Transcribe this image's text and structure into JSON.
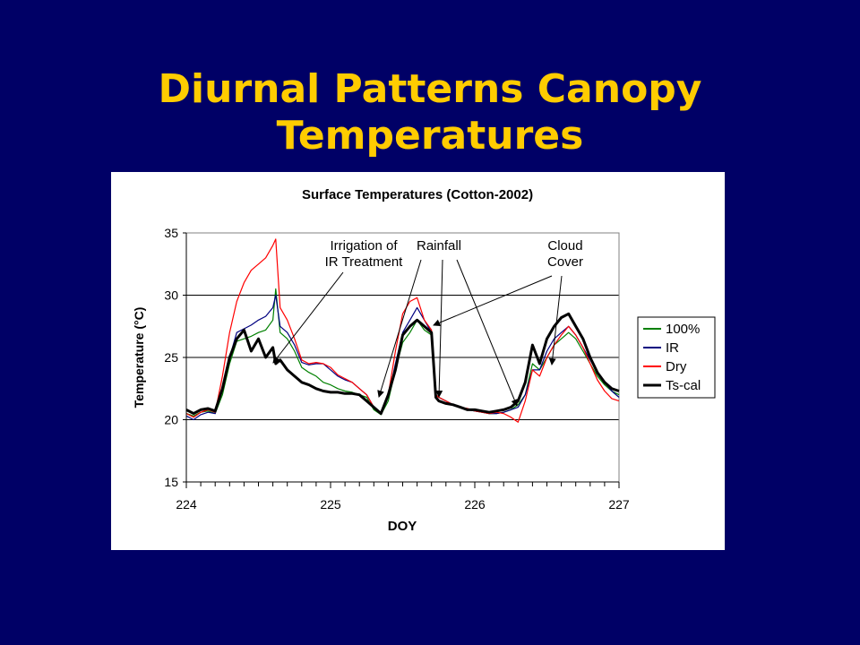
{
  "slide": {
    "title_line1": "Diurnal Patterns Canopy",
    "title_line2": "Temperatures"
  },
  "colors": {
    "background": "#000066",
    "title": "#FFCC00",
    "panel": "#FFFFFF"
  },
  "chart_data": {
    "type": "line",
    "title": "Surface Temperatures (Cotton-2002)",
    "xlabel": "DOY",
    "ylabel": "Temperature (°C)",
    "xlim": [
      224,
      227
    ],
    "ylim": [
      15,
      35
    ],
    "x_ticks": [
      "224",
      "225",
      "226",
      "227"
    ],
    "y_ticks": [
      "15",
      "20",
      "25",
      "30",
      "35"
    ],
    "grid": "horizontal",
    "legend_position": "right",
    "series": [
      {
        "name": "100%",
        "color": "#008000",
        "x": [
          224.0,
          224.05,
          224.1,
          224.15,
          224.2,
          224.25,
          224.3,
          224.35,
          224.4,
          224.45,
          224.5,
          224.55,
          224.6,
          224.62,
          224.65,
          224.7,
          224.75,
          224.8,
          224.85,
          224.9,
          224.95,
          225.0,
          225.05,
          225.1,
          225.15,
          225.2,
          225.25,
          225.3,
          225.35,
          225.4,
          225.45,
          225.5,
          225.55,
          225.6,
          225.65,
          225.7,
          225.73,
          225.75,
          225.8,
          225.85,
          225.9,
          225.95,
          226.0,
          226.05,
          226.1,
          226.15,
          226.2,
          226.25,
          226.3,
          226.35,
          226.4,
          226.45,
          226.5,
          226.55,
          226.6,
          226.65,
          226.7,
          226.75,
          226.8,
          226.85,
          226.9,
          226.95,
          227.0
        ],
        "y": [
          20.5,
          20.3,
          20.6,
          20.7,
          20.5,
          22.0,
          24.5,
          26.3,
          26.5,
          26.7,
          27.0,
          27.2,
          28.0,
          30.5,
          27.0,
          26.5,
          25.5,
          24.2,
          23.8,
          23.5,
          23.0,
          22.8,
          22.5,
          22.3,
          22.2,
          22.0,
          21.8,
          20.8,
          20.4,
          21.5,
          24.0,
          26.2,
          27.0,
          28.0,
          27.2,
          26.8,
          22.0,
          21.8,
          21.5,
          21.2,
          21.0,
          20.8,
          20.7,
          20.6,
          20.5,
          20.5,
          20.6,
          20.8,
          21.2,
          22.0,
          24.5,
          24.0,
          25.0,
          26.0,
          26.5,
          27.0,
          26.5,
          25.5,
          24.5,
          23.5,
          22.8,
          22.3,
          22.0
        ]
      },
      {
        "name": "IR",
        "color": "#000080",
        "x": [
          224.0,
          224.05,
          224.1,
          224.15,
          224.2,
          224.25,
          224.3,
          224.35,
          224.4,
          224.45,
          224.5,
          224.55,
          224.6,
          224.62,
          224.65,
          224.7,
          224.75,
          224.8,
          224.85,
          224.9,
          224.95,
          225.0,
          225.05,
          225.1,
          225.15,
          225.2,
          225.25,
          225.3,
          225.35,
          225.4,
          225.45,
          225.5,
          225.55,
          225.6,
          225.65,
          225.7,
          225.73,
          225.75,
          225.8,
          225.85,
          225.9,
          225.95,
          226.0,
          226.05,
          226.1,
          226.15,
          226.2,
          226.25,
          226.3,
          226.35,
          226.4,
          226.45,
          226.5,
          226.55,
          226.6,
          226.65,
          226.7,
          226.75,
          226.8,
          226.85,
          226.9,
          226.95,
          227.0
        ],
        "y": [
          20.3,
          20.0,
          20.4,
          20.6,
          20.5,
          22.5,
          25.0,
          27.0,
          27.3,
          27.6,
          28.0,
          28.3,
          29.0,
          30.0,
          27.5,
          27.0,
          26.0,
          24.6,
          24.4,
          24.5,
          24.5,
          24.0,
          23.5,
          23.2,
          23.0,
          22.5,
          22.0,
          21.0,
          20.5,
          21.8,
          24.5,
          27.0,
          28.0,
          29.0,
          28.0,
          27.0,
          22.0,
          21.8,
          21.5,
          21.2,
          21.0,
          20.8,
          20.7,
          20.6,
          20.5,
          20.5,
          20.6,
          20.8,
          21.0,
          22.0,
          24.0,
          24.0,
          25.5,
          26.5,
          27.0,
          27.5,
          26.8,
          25.8,
          24.8,
          23.8,
          23.0,
          22.3,
          21.8
        ]
      },
      {
        "name": "Dry",
        "color": "#FF0000",
        "x": [
          224.0,
          224.05,
          224.1,
          224.15,
          224.2,
          224.25,
          224.3,
          224.35,
          224.4,
          224.45,
          224.5,
          224.55,
          224.6,
          224.62,
          224.65,
          224.7,
          224.75,
          224.8,
          224.85,
          224.9,
          224.95,
          225.0,
          225.05,
          225.1,
          225.15,
          225.2,
          225.25,
          225.3,
          225.35,
          225.4,
          225.45,
          225.5,
          225.55,
          225.6,
          225.65,
          225.7,
          225.73,
          225.75,
          225.8,
          225.85,
          225.9,
          225.95,
          226.0,
          226.05,
          226.1,
          226.15,
          226.2,
          226.25,
          226.3,
          226.35,
          226.4,
          226.45,
          226.5,
          226.55,
          226.6,
          226.65,
          226.7,
          226.75,
          226.8,
          226.85,
          226.9,
          226.95,
          227.0
        ],
        "y": [
          20.5,
          20.2,
          20.6,
          20.8,
          20.6,
          23.5,
          27.0,
          29.5,
          31.0,
          32.0,
          32.5,
          33.0,
          34.0,
          34.5,
          29.0,
          28.0,
          26.5,
          24.8,
          24.5,
          24.6,
          24.5,
          24.2,
          23.6,
          23.3,
          23.0,
          22.5,
          22.0,
          21.0,
          20.5,
          22.0,
          25.5,
          28.5,
          29.5,
          29.8,
          28.0,
          27.2,
          22.0,
          21.8,
          21.5,
          21.2,
          21.0,
          20.9,
          20.7,
          20.6,
          20.5,
          20.6,
          20.5,
          20.2,
          19.8,
          21.5,
          24.0,
          23.5,
          25.0,
          26.0,
          26.8,
          27.5,
          26.8,
          25.8,
          24.5,
          23.2,
          22.3,
          21.7,
          21.5
        ]
      },
      {
        "name": "Ts-cal",
        "color": "#000000",
        "x": [
          224.0,
          224.05,
          224.1,
          224.15,
          224.2,
          224.25,
          224.3,
          224.35,
          224.4,
          224.45,
          224.5,
          224.55,
          224.6,
          224.62,
          224.65,
          224.7,
          224.75,
          224.8,
          224.85,
          224.9,
          224.95,
          225.0,
          225.05,
          225.1,
          225.15,
          225.2,
          225.25,
          225.3,
          225.35,
          225.4,
          225.45,
          225.5,
          225.55,
          225.6,
          225.65,
          225.7,
          225.73,
          225.75,
          225.8,
          225.85,
          225.9,
          225.95,
          226.0,
          226.05,
          226.1,
          226.15,
          226.2,
          226.25,
          226.3,
          226.35,
          226.4,
          226.45,
          226.5,
          226.55,
          226.6,
          226.65,
          226.7,
          226.75,
          226.8,
          226.85,
          226.9,
          226.95,
          227.0
        ],
        "y": [
          20.8,
          20.5,
          20.8,
          20.9,
          20.7,
          22.5,
          25.0,
          26.5,
          27.2,
          25.5,
          26.5,
          25.0,
          25.8,
          24.5,
          24.8,
          24.0,
          23.5,
          23.0,
          22.8,
          22.5,
          22.3,
          22.2,
          22.2,
          22.1,
          22.1,
          22.0,
          21.5,
          21.0,
          20.5,
          22.0,
          24.0,
          26.8,
          27.5,
          28.0,
          27.5,
          27.0,
          21.8,
          21.5,
          21.3,
          21.2,
          21.0,
          20.8,
          20.8,
          20.7,
          20.6,
          20.7,
          20.8,
          21.0,
          21.5,
          23.0,
          26.0,
          24.5,
          26.5,
          27.5,
          28.2,
          28.5,
          27.5,
          26.5,
          25.0,
          23.8,
          23.0,
          22.5,
          22.3
        ]
      }
    ],
    "annotations": [
      {
        "text_lines": [
          "Irrigation of",
          "IR Treatment"
        ]
      },
      {
        "text_lines": [
          "Rainfall"
        ]
      },
      {
        "text_lines": [
          "Cloud",
          "Cover"
        ]
      }
    ]
  }
}
